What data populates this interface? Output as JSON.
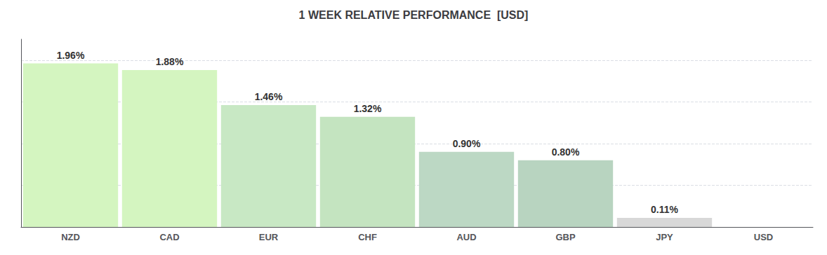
{
  "chart_data": {
    "type": "bar",
    "title": "1 WEEK RELATIVE PERFORMANCE  [USD]",
    "categories": [
      "NZD",
      "CAD",
      "EUR",
      "CHF",
      "AUD",
      "GBP",
      "JPY",
      "USD"
    ],
    "values": [
      1.96,
      1.88,
      1.46,
      1.32,
      0.9,
      0.8,
      0.11,
      0.0
    ],
    "value_labels": [
      "1.96%",
      "1.88%",
      "1.46%",
      "1.32%",
      "0.90%",
      "0.80%",
      "0.11%",
      null
    ],
    "data_labels": true,
    "colors": [
      "#d4f5c0",
      "#d4f5c0",
      "#c8e8c4",
      "#c4e4c0",
      "#bcd8c4",
      "#b8d4c0",
      "#d8d8d8",
      "#ffffff"
    ],
    "ylim": [
      0,
      2.25
    ],
    "yticks": [
      0.5,
      1.0,
      1.5,
      2.0
    ],
    "grid": true,
    "tick_labels": "x"
  }
}
